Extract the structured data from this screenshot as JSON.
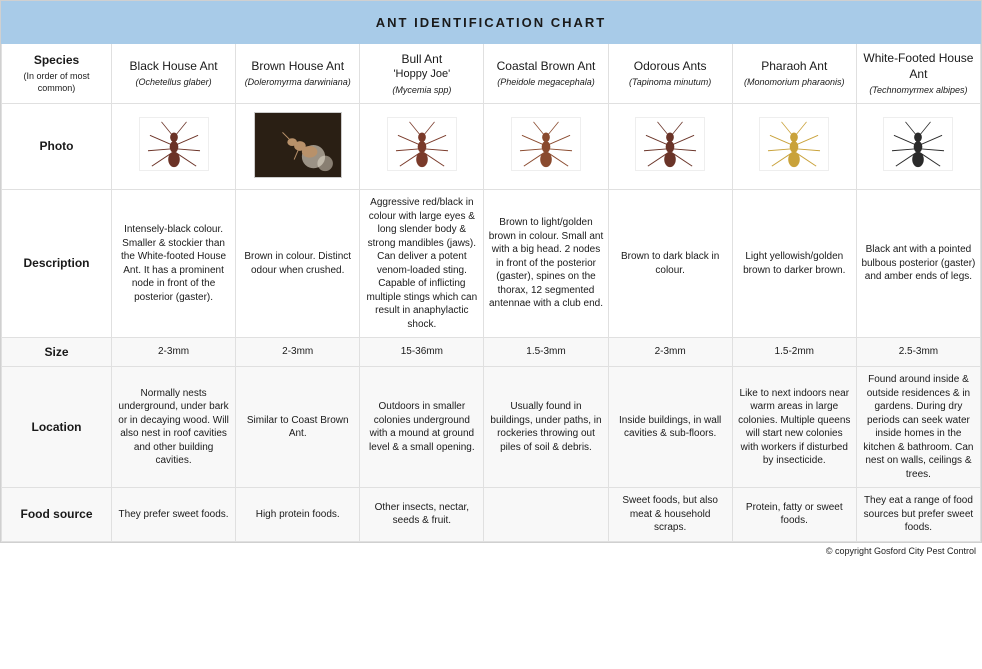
{
  "title": "ANT IDENTIFICATION CHART",
  "copyright": "© copyright Gosford City Pest Control",
  "row_labels": {
    "species": "Species",
    "species_sub": "(In order of most common)",
    "photo": "Photo",
    "description": "Description",
    "size": "Size",
    "location": "Location",
    "food": "Food source"
  },
  "colors": {
    "header_bg": "#a8cbe8",
    "border": "#e0e0e0",
    "text": "#1a1a1a"
  },
  "ants": [
    {
      "name": "Black House Ant",
      "sci": "(Ochetellus glaber)",
      "photo_style": "illust",
      "body_color": "#6b3226",
      "description": "Intensely-black colour. Smaller & stockier than the White-footed House Ant. It has a prominent node in front of the posterior (gaster).",
      "size": "2-3mm",
      "location": "Normally nests underground, under bark or in decaying wood. Will also nest in roof cavities and other building cavities.",
      "food": "They prefer sweet foods."
    },
    {
      "name": "Brown House Ant",
      "sci": "(Doleromyrma darwiniana)",
      "photo_style": "photo",
      "body_color": "#b8916a",
      "description": "Brown in colour. Distinct odour when crushed.",
      "size": "2-3mm",
      "location": "Similar to Coast Brown Ant.",
      "food": "High protein foods."
    },
    {
      "name": "Bull Ant",
      "nickname": "'Hoppy Joe'",
      "sci": "(Mycemia spp)",
      "photo_style": "illust",
      "body_color": "#7a3a2a",
      "description": "Aggressive red/black in colour with large eyes & long slender body & strong mandibles (jaws). Can deliver a potent venom-loaded sting. Capable of inflicting multiple stings which can result in anaphylactic shock.",
      "size": "15-36mm",
      "location": "Outdoors in smaller colonies underground with a mound at ground level & a small opening.",
      "food": "Other insects, nectar, seeds & fruit."
    },
    {
      "name": "Coastal Brown Ant",
      "sci": "(Pheidole megacephala)",
      "photo_style": "illust",
      "body_color": "#8a4a2e",
      "description": "Brown to light/golden brown in colour. Small ant with a big head. 2 nodes in front of the posterior (gaster), spines on the thorax, 12 segmented antennae with a club end.",
      "size": "1.5-3mm",
      "location": "Usually found in buildings, under paths, in rockeries throwing out piles of soil & debris.",
      "food": ""
    },
    {
      "name": "Odorous Ants",
      "sci": "(Tapinoma minutum)",
      "photo_style": "illust",
      "body_color": "#6a3428",
      "description": "Brown to dark black in colour.",
      "size": "2-3mm",
      "location": "Inside buildings, in wall cavities & sub-floors.",
      "food": "Sweet foods, but also meat & household scraps."
    },
    {
      "name": "Pharaoh Ant",
      "sci": "(Monomorium pharaonis)",
      "photo_style": "illust",
      "body_color": "#c9a23a",
      "description": "Light yellowish/golden brown to darker brown.",
      "size": "1.5-2mm",
      "location": "Like to next indoors near warm areas in large colonies. Multiple queens will start new colonies with workers if disturbed by insecticide.",
      "food": "Protein, fatty or sweet foods."
    },
    {
      "name": "White-Footed House Ant",
      "sci": "(Technomyrmex albipes)",
      "photo_style": "illust",
      "body_color": "#2a2a2a",
      "description": "Black ant with a pointed bulbous posterior (gaster) and amber ends of legs.",
      "size": "2.5-3mm",
      "location": "Found around inside & outside residences & in gardens. During dry periods can seek water inside homes in the kitchen & bathroom. Can nest on walls, ceilings & trees.",
      "food": "They eat a range of food sources but prefer sweet foods."
    }
  ]
}
